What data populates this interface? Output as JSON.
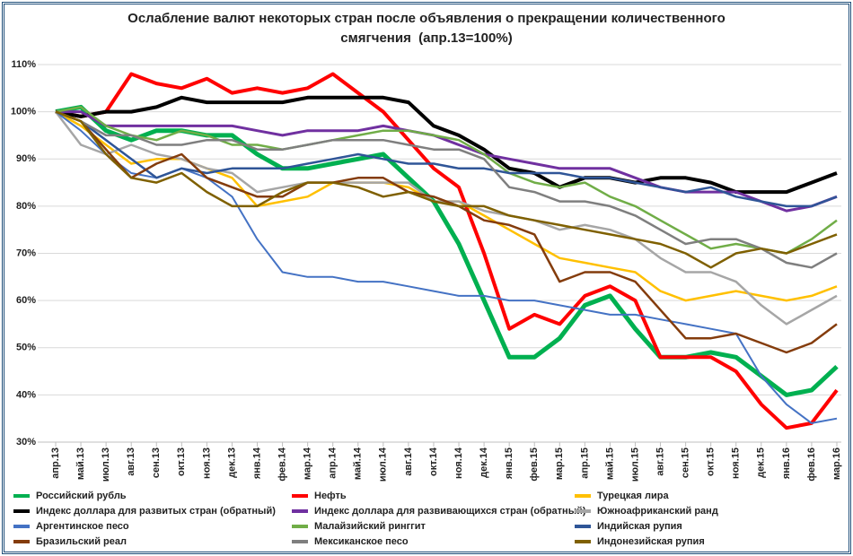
{
  "chart_data": {
    "type": "line",
    "title": "Ослабление валют некоторых стран после объявления о прекращении количественного смягчения  (апр.13=100%)",
    "categories": [
      "апр.13",
      "май.13",
      "июл.13",
      "авг.13",
      "сен.13",
      "окт.13",
      "ноя.13",
      "дек.13",
      "янв.14",
      "фев.14",
      "мар.14",
      "апр.14",
      "май.14",
      "июл.14",
      "авг.14",
      "окт.14",
      "ноя.14",
      "дек.14",
      "янв.15",
      "фев.15",
      "мар.15",
      "апр.15",
      "май.15",
      "июл.15",
      "авг.15",
      "сен.15",
      "окт.15",
      "ноя.15",
      "дек.15",
      "янв.16",
      "фев.16",
      "мар.16"
    ],
    "ylim": [
      30,
      110
    ],
    "yticks": [
      {
        "value": 30,
        "label": "30%"
      },
      {
        "value": 40,
        "label": "40%"
      },
      {
        "value": 50,
        "label": "50%"
      },
      {
        "value": 60,
        "label": "60%"
      },
      {
        "value": 70,
        "label": "70%"
      },
      {
        "value": 80,
        "label": "80%"
      },
      {
        "value": 90,
        "label": "90%"
      },
      {
        "value": 100,
        "label": "100%"
      },
      {
        "value": 110,
        "label": "110%"
      }
    ],
    "grid": true,
    "legend": "bottom",
    "series": [
      {
        "name": "Российский рубль",
        "color": "#00b050",
        "width": 5,
        "values": [
          100,
          101,
          96,
          94,
          96,
          96,
          95,
          95,
          91,
          88,
          88,
          89,
          90,
          91,
          86,
          81,
          72,
          60,
          48,
          48,
          52,
          59,
          61,
          54,
          48,
          48,
          49,
          48,
          44,
          40,
          41,
          46
        ]
      },
      {
        "name": "Нефть",
        "color": "#ff0000",
        "width": 4,
        "values": [
          100,
          99,
          100,
          108,
          106,
          105,
          107,
          104,
          105,
          104,
          105,
          108,
          104,
          100,
          94,
          88,
          84,
          70,
          54,
          57,
          55,
          61,
          63,
          60,
          48,
          48,
          48,
          45,
          38,
          33,
          34,
          41
        ]
      },
      {
        "name": "Турецкая лира",
        "color": "#ffc000",
        "width": 2.5,
        "values": [
          100,
          97,
          93,
          89,
          90,
          90,
          88,
          86,
          80,
          81,
          82,
          85,
          85,
          85,
          84,
          81,
          81,
          78,
          75,
          72,
          69,
          68,
          67,
          66,
          62,
          60,
          61,
          62,
          61,
          60,
          61,
          63
        ]
      },
      {
        "name": "Индекс доллара для развитых стран (обратный)",
        "color": "#000000",
        "width": 4,
        "values": [
          100,
          99,
          100,
          100,
          101,
          103,
          102,
          102,
          102,
          102,
          103,
          103,
          103,
          103,
          102,
          97,
          95,
          92,
          88,
          87,
          84,
          86,
          86,
          85,
          86,
          86,
          85,
          83,
          83,
          83,
          85,
          87
        ]
      },
      {
        "name": "Индекс доллара для развивающихся стран (обратный)",
        "color": "#7030a0",
        "width": 3,
        "values": [
          100,
          100,
          97,
          97,
          97,
          97,
          97,
          97,
          96,
          95,
          96,
          96,
          96,
          97,
          96,
          95,
          93,
          91,
          90,
          89,
          88,
          88,
          88,
          86,
          84,
          83,
          83,
          83,
          81,
          79,
          80,
          82
        ]
      },
      {
        "name": "Южноафриканский ранд",
        "color": "#a6a6a6",
        "width": 2.5,
        "values": [
          100,
          93,
          91,
          93,
          91,
          90,
          88,
          87,
          83,
          84,
          85,
          85,
          85,
          85,
          85,
          81,
          81,
          79,
          78,
          77,
          75,
          76,
          75,
          73,
          69,
          66,
          66,
          64,
          59,
          55,
          58,
          61
        ]
      },
      {
        "name": "Аргентинское песо",
        "color": "#4472c4",
        "width": 2,
        "values": [
          100,
          96,
          91,
          87,
          86,
          88,
          86,
          82,
          73,
          66,
          65,
          65,
          64,
          64,
          63,
          62,
          61,
          61,
          60,
          60,
          59,
          58,
          57,
          57,
          56,
          55,
          54,
          53,
          44,
          38,
          34,
          35
        ]
      },
      {
        "name": "Малайзийский ринггит",
        "color": "#70ad47",
        "width": 2.5,
        "values": [
          100,
          101,
          97,
          95,
          94,
          96,
          95,
          93,
          93,
          92,
          93,
          94,
          95,
          96,
          96,
          95,
          94,
          91,
          87,
          85,
          84,
          85,
          82,
          80,
          77,
          74,
          71,
          72,
          71,
          70,
          73,
          77
        ]
      },
      {
        "name": "Индийская рупия",
        "color": "#2f5597",
        "width": 2.5,
        "values": [
          100,
          98,
          94,
          90,
          86,
          88,
          87,
          88,
          88,
          88,
          89,
          90,
          91,
          90,
          89,
          89,
          88,
          88,
          87,
          87,
          87,
          86,
          86,
          85,
          84,
          83,
          84,
          82,
          81,
          80,
          80,
          82
        ]
      },
      {
        "name": "Бразильский реал",
        "color": "#843c0c",
        "width": 2.5,
        "values": [
          100,
          98,
          92,
          86,
          89,
          91,
          86,
          84,
          82,
          82,
          85,
          85,
          86,
          86,
          83,
          82,
          80,
          77,
          76,
          74,
          64,
          66,
          66,
          64,
          58,
          52,
          52,
          53,
          51,
          49,
          51,
          55
        ]
      },
      {
        "name": "Мексиканское песо",
        "color": "#7f7f7f",
        "width": 2.5,
        "values": [
          100,
          98,
          95,
          95,
          93,
          93,
          94,
          94,
          92,
          92,
          93,
          94,
          94,
          94,
          93,
          92,
          92,
          90,
          84,
          83,
          81,
          81,
          80,
          78,
          75,
          72,
          73,
          73,
          71,
          68,
          67,
          70
        ]
      },
      {
        "name": "Индонезийская рупия",
        "color": "#7f6000",
        "width": 2.5,
        "values": [
          100,
          98,
          91,
          86,
          85,
          87,
          83,
          80,
          80,
          83,
          85,
          85,
          84,
          82,
          83,
          81,
          80,
          80,
          78,
          77,
          76,
          75,
          74,
          73,
          72,
          70,
          67,
          70,
          71,
          70,
          72,
          74
        ]
      }
    ]
  }
}
